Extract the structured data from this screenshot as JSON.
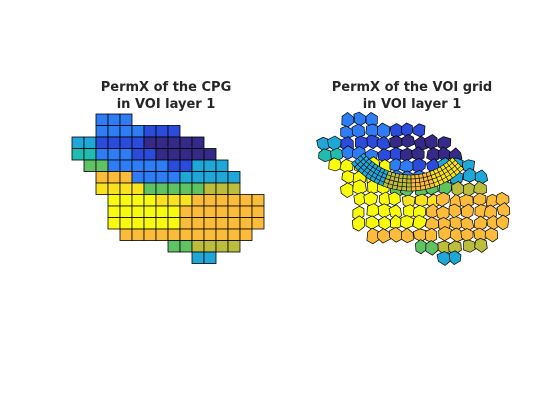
{
  "panels": [
    {
      "title_line1": "PermX of the CPG",
      "title_line2": "in VOI layer 1",
      "grid_type": "cartesian-cells"
    },
    {
      "title_line1": "PermX of the VOI grid",
      "title_line2": "in VOI layer 1",
      "grid_type": "voronoi-cells-with-radial-well-refinement"
    }
  ],
  "colormap": {
    "name": "parula",
    "stops": [
      "#352a87",
      "#2b4bdb",
      "#2f7df4",
      "#1fa7d8",
      "#21bcb0",
      "#5fc364",
      "#bcbd3c",
      "#fbbc3c",
      "#f9e31f",
      "#f9fb0e"
    ]
  },
  "cell_edge_color": "#000000"
}
